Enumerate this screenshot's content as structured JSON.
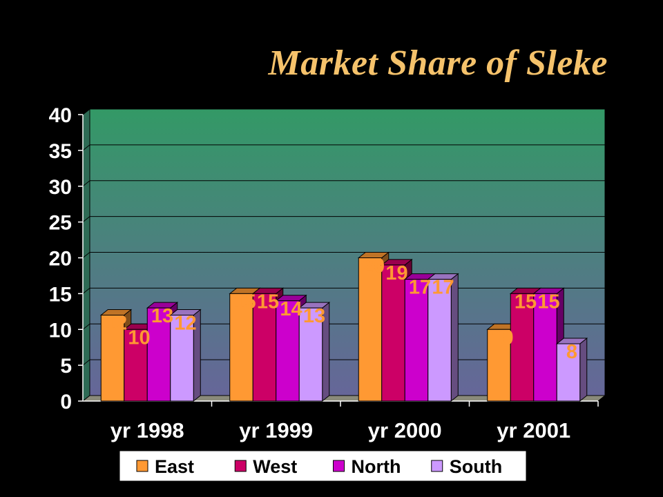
{
  "chart_data": {
    "type": "bar",
    "title": "Market Share of Sleke",
    "categories": [
      "yr 1998",
      "yr 1999",
      "yr 2000",
      "yr 2001"
    ],
    "series": [
      {
        "name": "East",
        "values": [
          12,
          15,
          20,
          10
        ],
        "color": "#ff9933"
      },
      {
        "name": "West",
        "values": [
          10,
          15,
          19,
          15
        ],
        "color": "#cc0066"
      },
      {
        "name": "North",
        "values": [
          13,
          14,
          17,
          15
        ],
        "color": "#cc00cc"
      },
      {
        "name": "South",
        "values": [
          12,
          13,
          17,
          8
        ],
        "color": "#cc99ff"
      }
    ],
    "yticks": [
      "0",
      "5",
      "10",
      "15",
      "20",
      "25",
      "30",
      "35",
      "40"
    ],
    "ylim": [
      0,
      40
    ],
    "grid": true,
    "legend_position": "bottom",
    "data_label_color": "#ff9933",
    "background_gradient": [
      "#339966",
      "#666699"
    ]
  }
}
